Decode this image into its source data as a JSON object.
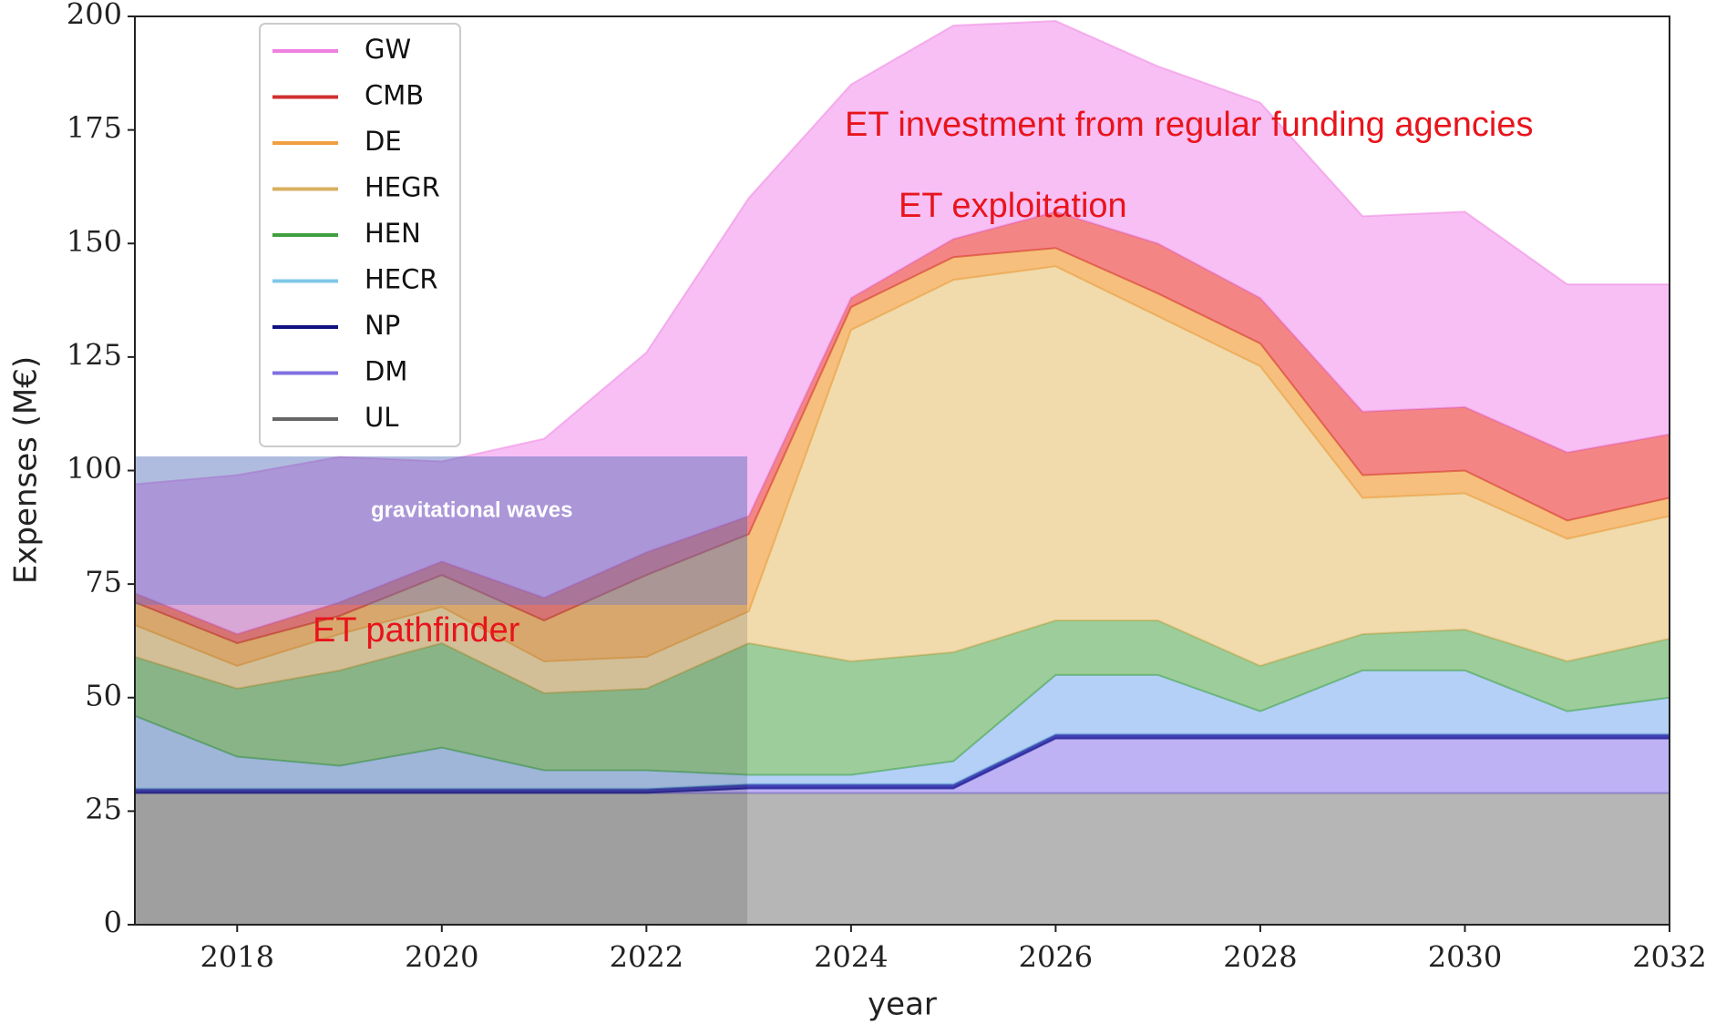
{
  "chart_data": {
    "type": "stacked_area",
    "xlabel": "year",
    "ylabel": "Expenses (M€)",
    "x": [
      2017,
      2018,
      2019,
      2020,
      2021,
      2022,
      2023,
      2024,
      2025,
      2026,
      2027,
      2028,
      2029,
      2030,
      2031,
      2032
    ],
    "xlim": [
      2017,
      2032
    ],
    "xticks": [
      2018,
      2020,
      2022,
      2024,
      2026,
      2028,
      2030,
      2032
    ],
    "ylim": [
      0,
      200
    ],
    "yticks": [
      0,
      25,
      50,
      75,
      100,
      125,
      150,
      175,
      200
    ],
    "legend": "upper left",
    "series": [
      {
        "name": "UL",
        "color": "#a9a9a9",
        "line_color": "#666666",
        "values": [
          29,
          29,
          29,
          29,
          29,
          29,
          29,
          29,
          29,
          29,
          29,
          29,
          29,
          29,
          29,
          29
        ]
      },
      {
        "name": "DM",
        "color": "#b4a4f2",
        "line_color": "#8070e0",
        "values": [
          0,
          0,
          0,
          0,
          0,
          0,
          1,
          1,
          1,
          12,
          12,
          12,
          12,
          12,
          12,
          12
        ]
      },
      {
        "name": "NP",
        "color": "#2020a8",
        "line_color": "#101080",
        "values": [
          1,
          1,
          1,
          1,
          1,
          1,
          1,
          1,
          1,
          1,
          1,
          1,
          1,
          1,
          1,
          1
        ]
      },
      {
        "name": "HECR",
        "color": "#a8c8f4",
        "line_color": "#80c8e8",
        "values": [
          16,
          7,
          5,
          9,
          4,
          4,
          2,
          2,
          5,
          13,
          13,
          5,
          14,
          14,
          5,
          8
        ]
      },
      {
        "name": "HEN",
        "color": "#8cc488",
        "line_color": "#40a040",
        "values": [
          13,
          15,
          21,
          23,
          17,
          18,
          29,
          25,
          24,
          12,
          12,
          10,
          8,
          9,
          11,
          13
        ]
      },
      {
        "name": "HEGR",
        "color": "#eed49e",
        "line_color": "#d8b060",
        "values": [
          7,
          5,
          8,
          8,
          7,
          7,
          7,
          73,
          82,
          78,
          67,
          66,
          30,
          30,
          27,
          27
        ]
      },
      {
        "name": "DE",
        "color": "#f5b466",
        "line_color": "#f0a040",
        "values": [
          5,
          5,
          4,
          7,
          9,
          18,
          17,
          5,
          5,
          4,
          5,
          5,
          5,
          5,
          4,
          4
        ]
      },
      {
        "name": "CMB",
        "color": "#f27070",
        "line_color": "#d03030",
        "values": [
          2,
          2,
          3,
          3,
          5,
          5,
          4,
          2,
          4,
          8,
          11,
          10,
          14,
          14,
          15,
          14
        ]
      },
      {
        "name": "GW",
        "color": "#f6b4f2",
        "line_color": "#f080e0",
        "values": [
          24,
          35,
          32,
          22,
          35,
          44,
          70,
          47,
          47,
          42,
          39,
          43,
          43,
          43,
          37,
          33
        ]
      }
    ],
    "annotations": [
      "ET investment from regular funding agencies",
      "ET exploitation",
      "ET pathfinder",
      "gravitational waves"
    ]
  }
}
